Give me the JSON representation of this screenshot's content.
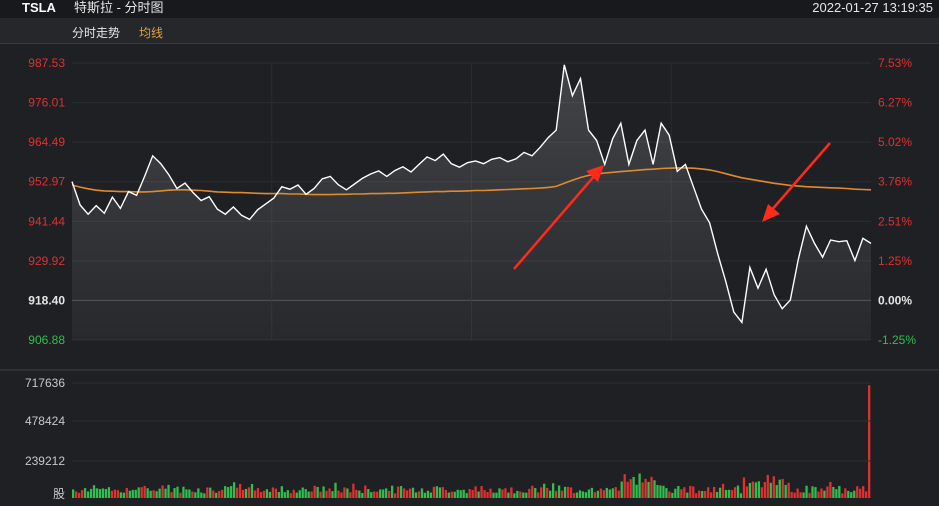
{
  "header": {
    "ticker": "TSLA",
    "name": "特斯拉 - 分时图",
    "datetime": "2022-01-27 13:19:35"
  },
  "tabs": {
    "intraday": "分时走势",
    "average": "均线"
  },
  "colors": {
    "background": "#1f2024",
    "price_line": "#ffffff",
    "avg_line": "#e08a2e",
    "up": "#e03030",
    "down": "#2fbf4f",
    "neutral_label": "#e6e6e6",
    "arrow": "#ff2a1a"
  },
  "chart_data": {
    "type": "line",
    "prev_close": 918.4,
    "ylim": [
      906.88,
      987.53
    ],
    "price_ticks": [
      "987.53",
      "976.01",
      "964.49",
      "952.97",
      "941.44",
      "929.92",
      "918.40",
      "906.88"
    ],
    "pct_ticks": [
      "7.53%",
      "6.27%",
      "5.02%",
      "3.76%",
      "2.51%",
      "1.25%",
      "0.00%",
      "-1.25%"
    ],
    "price": [
      953.0,
      946.2,
      943.5,
      946.0,
      943.8,
      948.5,
      945.2,
      950.1,
      949.0,
      954.5,
      960.5,
      958.2,
      955.0,
      951.0,
      952.6,
      949.8,
      947.5,
      948.6,
      945.0,
      943.5,
      945.6,
      943.2,
      942.0,
      944.8,
      946.5,
      948.2,
      951.5,
      950.8,
      952.0,
      949.3,
      951.0,
      953.8,
      954.5,
      952.1,
      950.6,
      952.3,
      954.0,
      955.2,
      956.1,
      954.5,
      956.2,
      957.3,
      955.8,
      958.0,
      960.2,
      959.1,
      961.0,
      958.2,
      957.2,
      958.5,
      959.0,
      958.2,
      959.5,
      960.0,
      958.8,
      959.6,
      961.5,
      960.5,
      963.0,
      965.8,
      968.0,
      987.0,
      978.0,
      983.0,
      968.0,
      965.0,
      958.0,
      965.5,
      970.0,
      958.0,
      965.0,
      968.0,
      958.0,
      970.0,
      966.5,
      956.0,
      958.0,
      951.5,
      945.0,
      941.0,
      932.0,
      924.0,
      915.0,
      912.0,
      928.0,
      922.0,
      927.5,
      920.0,
      916.0,
      918.5,
      930.5,
      940.0,
      935.0,
      931.0,
      936.0,
      935.5,
      935.8,
      930.0,
      936.5,
      935.0
    ],
    "avg": [
      952.0,
      951.4,
      950.9,
      950.5,
      950.3,
      950.2,
      950.1,
      950.1,
      950.0,
      950.0,
      950.1,
      950.3,
      950.5,
      950.6,
      950.6,
      950.5,
      950.4,
      950.2,
      950.0,
      949.9,
      949.8,
      949.8,
      949.7,
      949.6,
      949.5,
      949.5,
      949.5,
      949.4,
      949.4,
      949.3,
      949.2,
      949.2,
      949.2,
      949.3,
      949.3,
      949.4,
      949.4,
      949.5,
      949.5,
      949.6,
      949.6,
      949.7,
      949.8,
      949.9,
      950.0,
      950.1,
      950.1,
      950.2,
      950.2,
      950.3,
      950.4,
      950.4,
      950.5,
      950.6,
      950.7,
      950.8,
      950.9,
      951.0,
      951.1,
      951.3,
      951.6,
      952.5,
      953.4,
      954.2,
      954.8,
      955.2,
      955.5,
      955.7,
      955.9,
      956.1,
      956.3,
      956.5,
      956.6,
      956.8,
      956.9,
      957.0,
      957.0,
      956.9,
      956.7,
      956.4,
      955.9,
      955.3,
      954.7,
      954.1,
      953.7,
      953.3,
      952.9,
      952.5,
      952.2,
      951.9,
      951.7,
      951.5,
      951.4,
      951.3,
      951.2,
      951.1,
      951.0,
      950.8,
      950.7,
      950.6
    ],
    "volume_ticks": [
      "717636",
      "478424",
      "239212"
    ],
    "volume_unit": "股",
    "volume_max": 717636,
    "volume_seed": 7
  }
}
